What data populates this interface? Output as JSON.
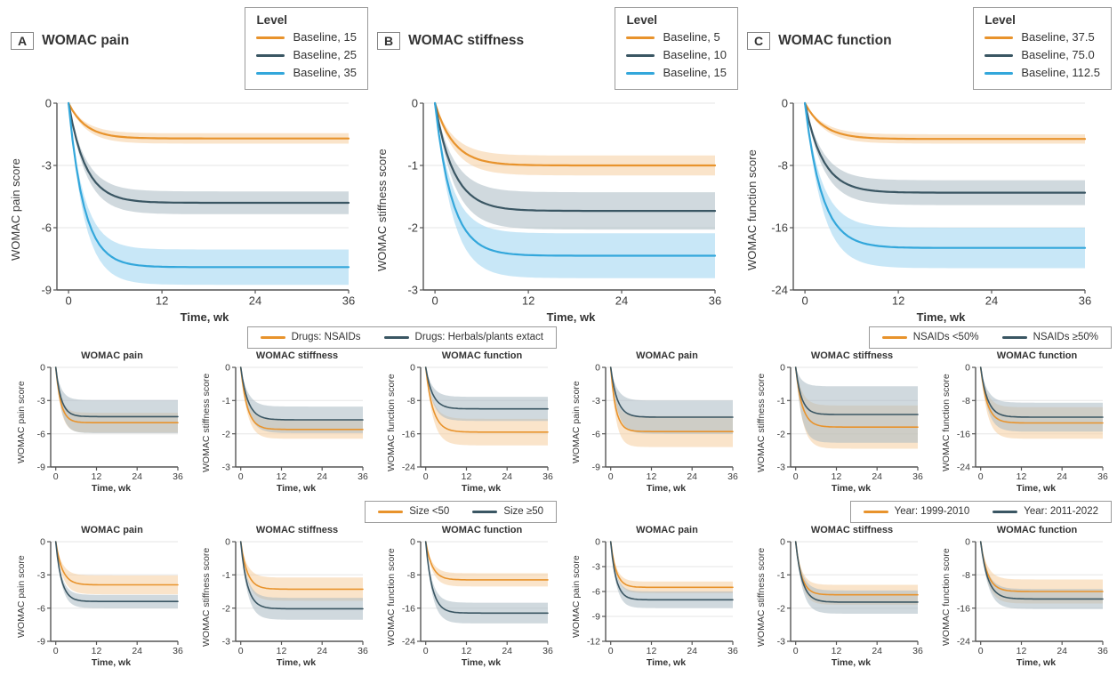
{
  "figure": {
    "colors": {
      "orange": "#E8932C",
      "dark": "#3A5663",
      "blue": "#33A7DB",
      "band_orange": "#F5CE9E",
      "band_dark": "#A9BAC3",
      "band_blue": "#9BD3F0",
      "grid": "#E6E6E6",
      "axis": "#555555",
      "text": "#3B3B3B"
    }
  },
  "top_panels": [
    {
      "label": "A",
      "title": "WOMAC pain",
      "legend_title": "Level",
      "legend": [
        {
          "label": "Baseline, 15"
        },
        {
          "label": "Baseline, 25"
        },
        {
          "label": "Baseline, 35"
        }
      ]
    },
    {
      "label": "B",
      "title": "WOMAC stiffness",
      "legend_title": "Level",
      "legend": [
        {
          "label": "Baseline, 5"
        },
        {
          "label": "Baseline, 10"
        },
        {
          "label": "Baseline, 15"
        }
      ]
    },
    {
      "label": "C",
      "title": "WOMAC function",
      "legend_title": "Level",
      "legend": [
        {
          "label": "Baseline, 37.5"
        },
        {
          "label": "Baseline, 75.0"
        },
        {
          "label": "Baseline, 112.5"
        }
      ]
    }
  ],
  "group_legends": [
    {
      "entries": [
        {
          "label": "Drugs: NSAIDs"
        },
        {
          "label": "Drugs: Herbals/plants extact"
        }
      ]
    },
    {
      "entries": [
        {
          "label": "NSAIDs <50%"
        },
        {
          "label": "NSAIDs ≥50%"
        }
      ]
    },
    {
      "entries": [
        {
          "label": "Size <50"
        },
        {
          "label": "Size ≥50"
        }
      ]
    },
    {
      "entries": [
        {
          "label": "Year: 1999-2010"
        },
        {
          "label": "Year: 2011-2022"
        }
      ]
    }
  ],
  "chart_data": [
    {
      "panel": "A",
      "type": "area",
      "small": false,
      "title": "WOMAC pain",
      "xlabel": "Time, wk",
      "ylabel": "WOMAC pain score",
      "x_range": [
        0,
        36
      ],
      "xticks": [
        0,
        12,
        24,
        36
      ],
      "ylim": [
        -9,
        0
      ],
      "yticks": [
        0,
        -3,
        -6,
        -9
      ],
      "grid": true,
      "legend_position": "top-right",
      "model": "y(t) = plateau * (1 - exp(-t/tau)); shaded 95% band half-width reaches ci at plateau",
      "series": [
        {
          "name": "Baseline, 15",
          "color_key": "orange",
          "plateau": -1.7,
          "tau": 2.2,
          "ci": 0.25
        },
        {
          "name": "Baseline, 25",
          "color_key": "dark",
          "plateau": -4.8,
          "tau": 2.2,
          "ci": 0.55
        },
        {
          "name": "Baseline, 35",
          "color_key": "blue",
          "plateau": -7.9,
          "tau": 2.0,
          "ci": 0.85
        }
      ]
    },
    {
      "panel": "B",
      "type": "area",
      "small": false,
      "title": "WOMAC stiffness",
      "xlabel": "Time, wk",
      "ylabel": "WOMAC stiffness score",
      "x_range": [
        0,
        36
      ],
      "xticks": [
        0,
        12,
        24,
        36
      ],
      "ylim": [
        -3,
        0
      ],
      "yticks": [
        0,
        -1,
        -2,
        -3
      ],
      "grid": true,
      "legend_position": "top-right",
      "model": "y(t) = plateau * (1 - exp(-t/tau))",
      "series": [
        {
          "name": "Baseline, 5",
          "color_key": "orange",
          "plateau": -1.0,
          "tau": 2.4,
          "ci": 0.16
        },
        {
          "name": "Baseline, 10",
          "color_key": "dark",
          "plateau": -1.73,
          "tau": 2.4,
          "ci": 0.3
        },
        {
          "name": "Baseline, 15",
          "color_key": "blue",
          "plateau": -2.45,
          "tau": 2.2,
          "ci": 0.36
        }
      ]
    },
    {
      "panel": "C",
      "type": "area",
      "small": false,
      "title": "WOMAC function",
      "xlabel": "Time, wk",
      "ylabel": "WOMAC function score",
      "x_range": [
        0,
        36
      ],
      "xticks": [
        0,
        12,
        24,
        36
      ],
      "ylim": [
        -24,
        0
      ],
      "yticks": [
        0,
        -8,
        -16,
        -24
      ],
      "grid": true,
      "legend_position": "top-right",
      "model": "y(t) = plateau * (1 - exp(-t/tau))",
      "series": [
        {
          "name": "Baseline, 37.5",
          "color_key": "orange",
          "plateau": -4.6,
          "tau": 2.4,
          "ci": 0.6
        },
        {
          "name": "Baseline, 75.0",
          "color_key": "dark",
          "plateau": -11.5,
          "tau": 2.3,
          "ci": 1.6
        },
        {
          "name": "Baseline, 112.5",
          "color_key": "blue",
          "plateau": -18.6,
          "tau": 2.2,
          "ci": 2.6
        }
      ]
    },
    {
      "panel": "drug-class",
      "type": "area",
      "small": true,
      "title": "WOMAC pain",
      "xlabel": "Time, wk",
      "ylabel": "WOMAC pain score",
      "x_range": [
        0,
        36
      ],
      "xticks": [
        0,
        12,
        24,
        36
      ],
      "ylim": [
        -9,
        0
      ],
      "yticks": [
        0,
        -3,
        -6,
        -9
      ],
      "series": [
        {
          "name": "Drugs: NSAIDs",
          "color_key": "orange",
          "plateau": -5.0,
          "tau": 1.5,
          "ci": 0.9
        },
        {
          "name": "Drugs: Herbals/plants extact",
          "color_key": "dark",
          "plateau": -4.45,
          "tau": 1.6,
          "ci": 1.5
        }
      ]
    },
    {
      "panel": "drug-class",
      "type": "area",
      "small": true,
      "title": "WOMAC stiffness",
      "xlabel": "Time, wk",
      "ylabel": "WOMAC stiffness score",
      "x_range": [
        0,
        36
      ],
      "xticks": [
        0,
        12,
        24,
        36
      ],
      "ylim": [
        -3,
        0
      ],
      "yticks": [
        0,
        -1,
        -2,
        -3
      ],
      "series": [
        {
          "name": "Drugs: NSAIDs",
          "color_key": "orange",
          "plateau": -1.87,
          "tau": 1.9,
          "ci": 0.28
        },
        {
          "name": "Drugs: Herbals/plants extact",
          "color_key": "dark",
          "plateau": -1.58,
          "tau": 2.1,
          "ci": 0.4
        }
      ]
    },
    {
      "panel": "drug-class",
      "type": "area",
      "small": true,
      "title": "WOMAC function",
      "xlabel": "Time, wk",
      "ylabel": "WOMAC function score",
      "x_range": [
        0,
        36
      ],
      "xticks": [
        0,
        12,
        24,
        36
      ],
      "ylim": [
        -24,
        0
      ],
      "yticks": [
        0,
        -8,
        -16,
        -24
      ],
      "series": [
        {
          "name": "Drugs: NSAIDs",
          "color_key": "orange",
          "plateau": -15.6,
          "tau": 2.1,
          "ci": 3.2
        },
        {
          "name": "Drugs: Herbals/plants extact",
          "color_key": "dark",
          "plateau": -10.0,
          "tau": 2.0,
          "ci": 2.9
        }
      ]
    },
    {
      "panel": "nsaid-proportion",
      "type": "area",
      "small": true,
      "title": "WOMAC pain",
      "xlabel": "Time, wk",
      "ylabel": "WOMAC pain score",
      "x_range": [
        0,
        36
      ],
      "xticks": [
        0,
        12,
        24,
        36
      ],
      "ylim": [
        -9,
        0
      ],
      "yticks": [
        0,
        -3,
        -6,
        -9
      ],
      "series": [
        {
          "name": "NSAIDs <50%",
          "color_key": "orange",
          "plateau": -5.8,
          "tau": 1.5,
          "ci": 1.4
        },
        {
          "name": "NSAIDs ≥50%",
          "color_key": "dark",
          "plateau": -4.5,
          "tau": 1.9,
          "ci": 1.5
        }
      ]
    },
    {
      "panel": "nsaid-proportion",
      "type": "area",
      "small": true,
      "title": "WOMAC stiffness",
      "xlabel": "Time, wk",
      "ylabel": "WOMAC stiffness score",
      "x_range": [
        0,
        36
      ],
      "xticks": [
        0,
        12,
        24,
        36
      ],
      "ylim": [
        -3,
        0
      ],
      "yticks": [
        0,
        -1,
        -2,
        -3
      ],
      "series": [
        {
          "name": "NSAIDs <50%",
          "color_key": "orange",
          "plateau": -1.8,
          "tau": 1.9,
          "ci": 0.65
        },
        {
          "name": "NSAIDs ≥50%",
          "color_key": "dark",
          "plateau": -1.42,
          "tau": 1.7,
          "ci": 0.85
        }
      ]
    },
    {
      "panel": "nsaid-proportion",
      "type": "area",
      "small": true,
      "title": "WOMAC function",
      "xlabel": "Time, wk",
      "ylabel": "WOMAC function score",
      "x_range": [
        0,
        36
      ],
      "xticks": [
        0,
        12,
        24,
        36
      ],
      "ylim": [
        -24,
        0
      ],
      "yticks": [
        0,
        -8,
        -16,
        -24
      ],
      "series": [
        {
          "name": "NSAIDs <50%",
          "color_key": "orange",
          "plateau": -13.4,
          "tau": 1.9,
          "ci": 3.8
        },
        {
          "name": "NSAIDs ≥50%",
          "color_key": "dark",
          "plateau": -12.0,
          "tau": 2.0,
          "ci": 3.5
        }
      ]
    },
    {
      "panel": "sample-size",
      "type": "area",
      "small": true,
      "title": "WOMAC pain",
      "xlabel": "Time, wk",
      "ylabel": "WOMAC pain score",
      "x_range": [
        0,
        36
      ],
      "xticks": [
        0,
        12,
        24,
        36
      ],
      "ylim": [
        -9,
        0
      ],
      "yticks": [
        0,
        -3,
        -6,
        -9
      ],
      "series": [
        {
          "name": "Size <50",
          "color_key": "orange",
          "plateau": -3.9,
          "tau": 1.9,
          "ci": 0.85
        },
        {
          "name": "Size ≥50",
          "color_key": "dark",
          "plateau": -5.4,
          "tau": 1.7,
          "ci": 0.6
        }
      ]
    },
    {
      "panel": "sample-size",
      "type": "area",
      "small": true,
      "title": "WOMAC stiffness",
      "xlabel": "Time, wk",
      "ylabel": "WOMAC stiffness score",
      "x_range": [
        0,
        36
      ],
      "xticks": [
        0,
        12,
        24,
        36
      ],
      "ylim": [
        -3,
        0
      ],
      "yticks": [
        0,
        -1,
        -2,
        -3
      ],
      "series": [
        {
          "name": "Size <50",
          "color_key": "orange",
          "plateau": -1.43,
          "tau": 1.9,
          "ci": 0.35
        },
        {
          "name": "Size ≥50",
          "color_key": "dark",
          "plateau": -2.02,
          "tau": 1.9,
          "ci": 0.33
        }
      ]
    },
    {
      "panel": "sample-size",
      "type": "area",
      "small": true,
      "title": "WOMAC function",
      "xlabel": "Time, wk",
      "ylabel": "WOMAC function score",
      "x_range": [
        0,
        36
      ],
      "xticks": [
        0,
        12,
        24,
        36
      ],
      "ylim": [
        -24,
        0
      ],
      "yticks": [
        0,
        -8,
        -16,
        -24
      ],
      "series": [
        {
          "name": "Size <50",
          "color_key": "orange",
          "plateau": -9.2,
          "tau": 1.9,
          "ci": 1.6
        },
        {
          "name": "Size ≥50",
          "color_key": "dark",
          "plateau": -17.2,
          "tau": 1.9,
          "ci": 2.5
        }
      ]
    },
    {
      "panel": "publication-year",
      "type": "area",
      "small": true,
      "title": "WOMAC pain",
      "xlabel": "Time, wk",
      "ylabel": "WOMAC pain score",
      "x_range": [
        0,
        36
      ],
      "xticks": [
        0,
        12,
        24,
        36
      ],
      "ylim": [
        -12,
        0
      ],
      "yticks": [
        0,
        -3,
        -6,
        -9,
        -12
      ],
      "series": [
        {
          "name": "Year: 1999-2010",
          "color_key": "orange",
          "plateau": -5.5,
          "tau": 1.6,
          "ci": 0.7
        },
        {
          "name": "Year: 2011-2022",
          "color_key": "dark",
          "plateau": -7.0,
          "tau": 1.6,
          "ci": 1.0
        }
      ]
    },
    {
      "panel": "publication-year",
      "type": "area",
      "small": true,
      "title": "WOMAC stiffness",
      "xlabel": "Time, wk",
      "ylabel": "WOMAC stiffness score",
      "x_range": [
        0,
        36
      ],
      "xticks": [
        0,
        12,
        24,
        36
      ],
      "ylim": [
        -3,
        0
      ],
      "yticks": [
        0,
        -1,
        -2,
        -3
      ],
      "series": [
        {
          "name": "Year: 1999-2010",
          "color_key": "orange",
          "plateau": -1.6,
          "tau": 1.7,
          "ci": 0.3
        },
        {
          "name": "Year: 2011-2022",
          "color_key": "dark",
          "plateau": -1.82,
          "tau": 1.9,
          "ci": 0.35
        }
      ]
    },
    {
      "panel": "publication-year",
      "type": "area",
      "small": true,
      "title": "WOMAC function",
      "xlabel": "Time, wk",
      "ylabel": "WOMAC function score",
      "x_range": [
        0,
        36
      ],
      "xticks": [
        0,
        12,
        24,
        36
      ],
      "ylim": [
        -24,
        0
      ],
      "yticks": [
        0,
        -8,
        -16,
        -24
      ],
      "series": [
        {
          "name": "Year: 1999-2010",
          "color_key": "orange",
          "plateau": -12.0,
          "tau": 2.0,
          "ci": 2.9
        },
        {
          "name": "Year: 2011-2022",
          "color_key": "dark",
          "plateau": -13.8,
          "tau": 2.1,
          "ci": 2.4
        }
      ]
    }
  ]
}
